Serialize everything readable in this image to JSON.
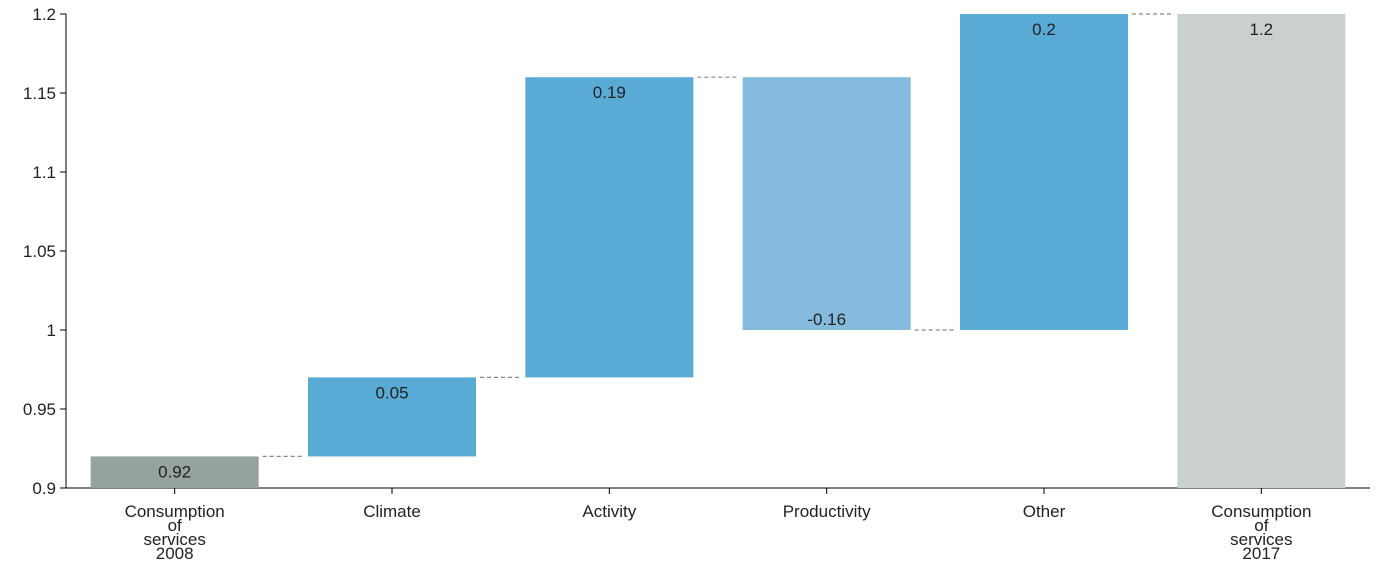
{
  "chart_data": {
    "type": "bar",
    "subtype": "waterfall",
    "categories": [
      [
        "Consumption",
        "of",
        "services",
        "2008"
      ],
      [
        "Climate"
      ],
      [
        "Activity"
      ],
      [
        "Productivity"
      ],
      [
        "Other"
      ],
      [
        "Consumption",
        "of",
        "services",
        "2017"
      ]
    ],
    "bars": [
      {
        "kind": "total",
        "start": 0.9,
        "end": 0.92,
        "label": "0.92",
        "color": "#95a39c"
      },
      {
        "kind": "delta",
        "start": 0.92,
        "end": 0.97,
        "label": "0.05",
        "color": "#5aaad6"
      },
      {
        "kind": "delta",
        "start": 0.97,
        "end": 1.16,
        "label": "0.19",
        "color": "#5aaad6"
      },
      {
        "kind": "delta",
        "start": 1.16,
        "end": 1.0,
        "label": "-0.16",
        "color": "#85bbdd"
      },
      {
        "kind": "delta",
        "start": 1.0,
        "end": 1.2,
        "label": "0.2",
        "color": "#5aaad6"
      },
      {
        "kind": "total",
        "start": 0.9,
        "end": 1.2,
        "label": "1.2",
        "color": "#cbcfcd"
      }
    ],
    "yticks": [
      "0.9",
      "0.95",
      "1",
      "1.05",
      "1.1",
      "1.15",
      "1.2"
    ],
    "ylim": [
      0.9,
      1.2
    ],
    "grid": false,
    "connectors": true,
    "title": "",
    "xlabel": "",
    "ylabel": ""
  }
}
